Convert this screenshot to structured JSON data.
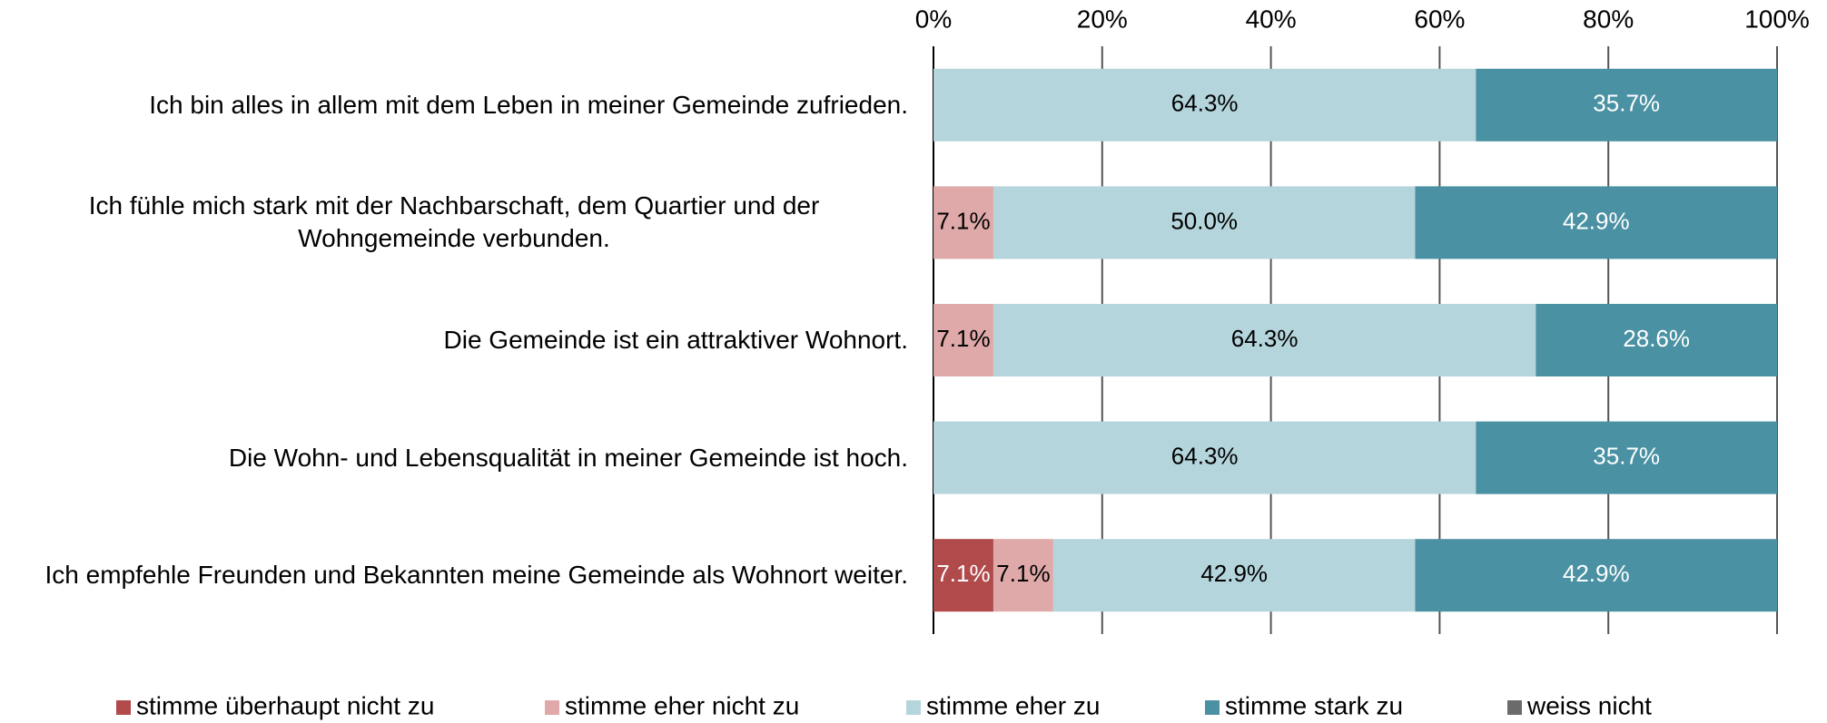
{
  "chart_data": {
    "type": "stacked_barh",
    "categories": [
      "Ich bin alles in allem mit dem Leben in meiner Gemeinde zufrieden.",
      "Ich fühle mich stark mit der Nachbarschaft, dem Quartier und der Wohngemeinde verbunden.",
      "Die Gemeinde ist ein attraktiver Wohnort.",
      "Die Wohn- und Lebensqualität in meiner Gemeinde ist hoch.",
      "Ich empfehle Freunden und Bekannten meine Gemeinde als Wohnort weiter."
    ],
    "series": [
      {
        "name": "stimme überhaupt nicht zu",
        "color": "#b04a4b",
        "values": [
          0,
          0,
          0,
          0,
          7.1
        ],
        "value_labels": [
          null,
          null,
          null,
          null,
          "7.1%"
        ]
      },
      {
        "name": "stimme eher nicht zu",
        "color": "#e0a9a9",
        "values": [
          0,
          7.1,
          7.1,
          0,
          7.1
        ],
        "value_labels": [
          null,
          "7.1%",
          "7.1%",
          null,
          "7.1%"
        ]
      },
      {
        "name": "stimme eher zu",
        "color": "#b5d5dc",
        "values": [
          64.3,
          50.0,
          64.3,
          64.3,
          42.9
        ],
        "value_labels": [
          "64.3%",
          "50.0%",
          "64.3%",
          "64.3%",
          "42.9%"
        ]
      },
      {
        "name": "stimme stark zu",
        "color": "#4a91a3",
        "values": [
          35.7,
          42.9,
          28.6,
          35.7,
          42.9
        ],
        "value_labels": [
          "35.7%",
          "42.9%",
          "28.6%",
          "35.7%",
          "42.9%"
        ]
      },
      {
        "name": "weiss nicht",
        "color": "#6b6b6b",
        "values": [
          0,
          0,
          0,
          0,
          0
        ],
        "value_labels": [
          null,
          null,
          null,
          null,
          null
        ]
      }
    ],
    "xlim": [
      0,
      100
    ],
    "xticks": [
      {
        "value": 0,
        "label": "0%"
      },
      {
        "value": 20,
        "label": "20%"
      },
      {
        "value": 40,
        "label": "40%"
      },
      {
        "value": 60,
        "label": "60%"
      },
      {
        "value": 80,
        "label": "80%"
      },
      {
        "value": 100,
        "label": "100%"
      }
    ],
    "grid": true,
    "legend": "bottom"
  }
}
